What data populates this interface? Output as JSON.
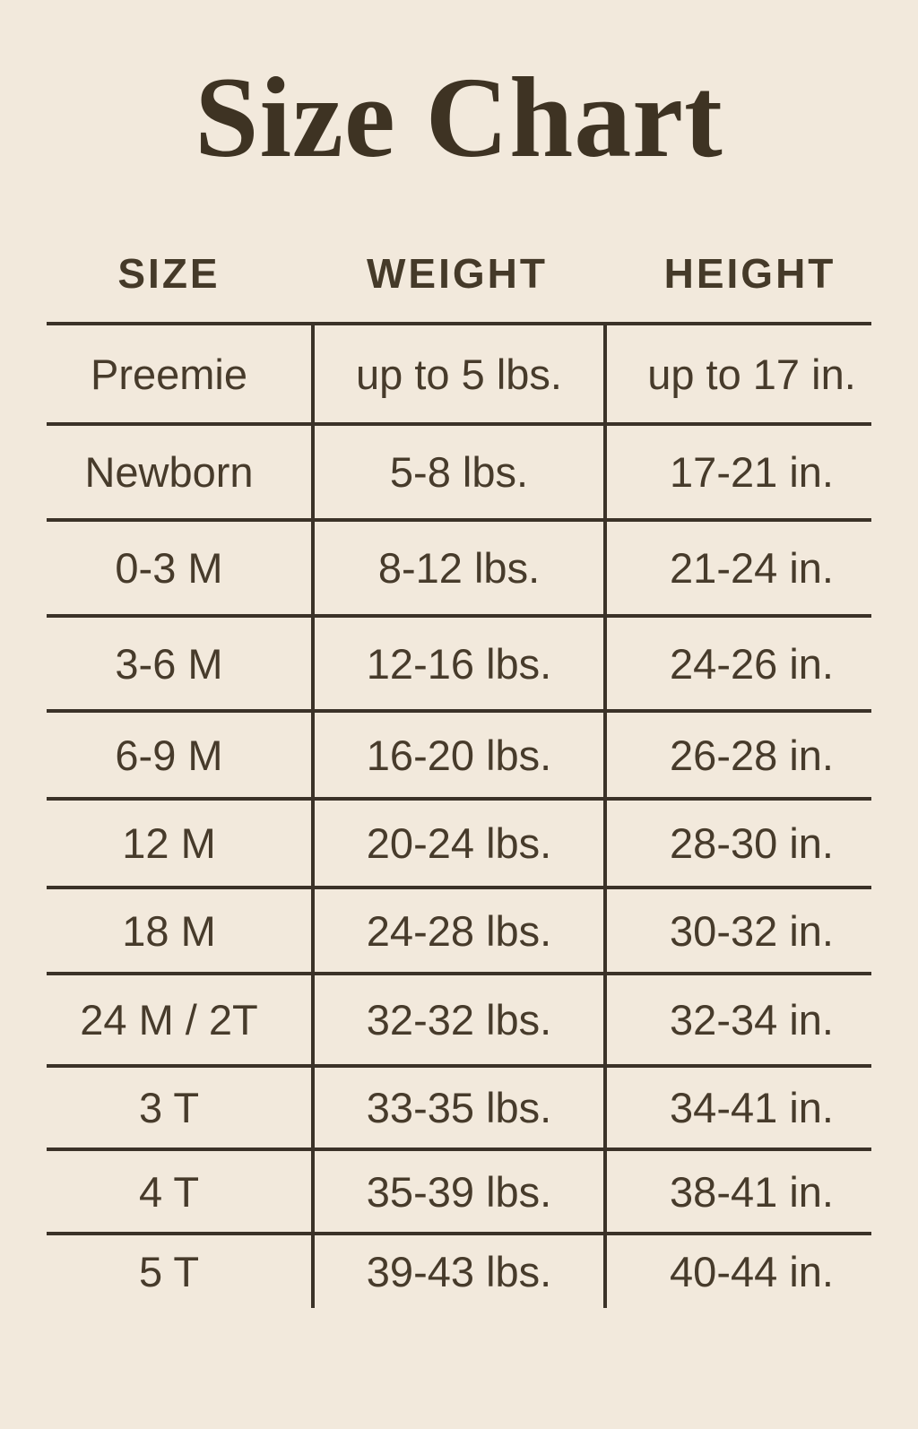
{
  "page": {
    "background_color": "#f2e9dc",
    "line_color": "#3b3228",
    "text_color": "#473b2b",
    "title_color": "#3e3323"
  },
  "title": "Size Chart",
  "table": {
    "headers": [
      "SIZE",
      "WEIGHT",
      "HEIGHT"
    ],
    "rows": [
      {
        "size": "Preemie",
        "weight": "up to 5 lbs.",
        "height": "up to 17 in."
      },
      {
        "size": "Newborn",
        "weight": "5-8 lbs.",
        "height": "17-21 in."
      },
      {
        "size": "0-3 M",
        "weight": "8-12 lbs.",
        "height": "21-24 in."
      },
      {
        "size": "3-6 M",
        "weight": "12-16 lbs.",
        "height": "24-26 in."
      },
      {
        "size": "6-9 M",
        "weight": "16-20 lbs.",
        "height": "26-28 in."
      },
      {
        "size": "12 M",
        "weight": "20-24 lbs.",
        "height": "28-30 in."
      },
      {
        "size": "18 M",
        "weight": "24-28 lbs.",
        "height": "30-32 in."
      },
      {
        "size": "24 M / 2T",
        "weight": "32-32 lbs.",
        "height": "32-34 in."
      },
      {
        "size": "3 T",
        "weight": "33-35 lbs.",
        "height": "34-41 in."
      },
      {
        "size": "4 T",
        "weight": "35-39 lbs.",
        "height": "38-41 in."
      },
      {
        "size": "5 T",
        "weight": "39-43 lbs.",
        "height": "40-44 in."
      }
    ]
  },
  "chart_data": {
    "type": "table",
    "title": "Size Chart",
    "columns": [
      "SIZE",
      "WEIGHT",
      "HEIGHT"
    ],
    "rows": [
      [
        "Preemie",
        "up to 5 lbs.",
        "up to 17 in."
      ],
      [
        "Newborn",
        "5-8 lbs.",
        "17-21 in."
      ],
      [
        "0-3 M",
        "8-12 lbs.",
        "21-24 in."
      ],
      [
        "3-6 M",
        "12-16 lbs.",
        "24-26 in."
      ],
      [
        "6-9 M",
        "16-20 lbs.",
        "26-28 in."
      ],
      [
        "12 M",
        "20-24 lbs.",
        "28-30 in."
      ],
      [
        "18 M",
        "24-28 lbs.",
        "30-32 in."
      ],
      [
        "24 M / 2T",
        "32-32 lbs.",
        "32-34 in."
      ],
      [
        "3 T",
        "33-35 lbs.",
        "34-41 in."
      ],
      [
        "4 T",
        "35-39 lbs.",
        "38-41 in."
      ],
      [
        "5 T",
        "39-43 lbs.",
        "40-44 in."
      ]
    ],
    "layout_hints": {
      "header_outside_grid": true,
      "outer_border": false,
      "row_dividers": true,
      "column_dividers": true
    }
  }
}
